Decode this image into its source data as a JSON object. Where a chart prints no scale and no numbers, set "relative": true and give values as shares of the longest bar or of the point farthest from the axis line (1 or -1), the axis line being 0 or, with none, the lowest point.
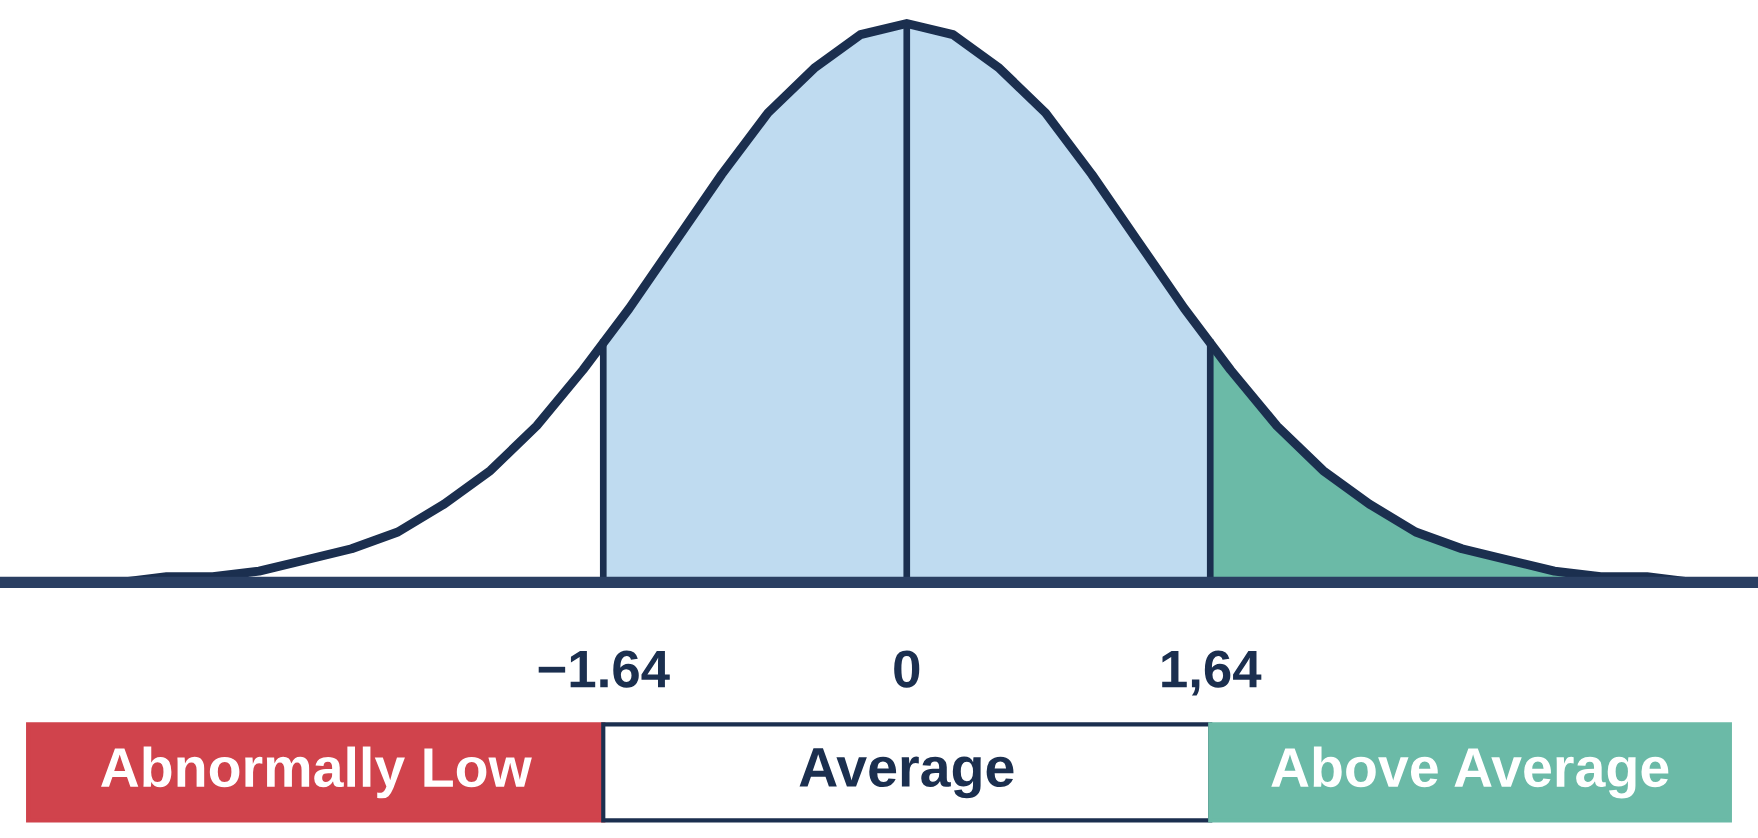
{
  "chart_data": {
    "type": "area",
    "relative": true,
    "xlim": [
      -4.9,
      4.6
    ],
    "xticks": [
      {
        "value": -1.64,
        "label": "−1.64"
      },
      {
        "value": 0,
        "label": "0"
      },
      {
        "value": 1.64,
        "label": "1,64"
      }
    ],
    "series": [
      {
        "color": "#bfdbf0",
        "x": [
          -1.64,
          -1.5,
          -1.25,
          -1.0,
          -0.75,
          -0.5,
          -0.25,
          0,
          0.25,
          0.5,
          0.75,
          1.0,
          1.25,
          1.5,
          1.64
        ],
        "values": [
          0.43,
          0.49,
          0.61,
          0.73,
          0.84,
          0.92,
          0.98,
          1,
          0.98,
          0.92,
          0.84,
          0.73,
          0.61,
          0.49,
          0.43
        ]
      },
      {
        "color": "#6bbaa7",
        "x": [
          1.64,
          1.75,
          2.0,
          2.25,
          2.5,
          2.75,
          3.0,
          3.25,
          3.5,
          3.75,
          4.0,
          4.25,
          4.6
        ],
        "values": [
          0.43,
          0.38,
          0.28,
          0.2,
          0.14,
          0.09,
          0.06,
          0.04,
          0.02,
          0.01,
          0.01,
          0,
          0
        ]
      },
      {
        "type": "line",
        "color": "#1b2f4f",
        "x": [
          -4.75,
          -4.5,
          -4.25,
          -4.0,
          -3.75,
          -3.5,
          -3.25,
          -3.0,
          -2.75,
          -2.5,
          -2.25,
          -2.0,
          -1.75,
          -1.5,
          -1.25,
          -1.0,
          -0.75,
          -0.5,
          -0.25,
          0,
          0.25,
          0.5,
          0.75,
          1.0,
          1.25,
          1.5,
          1.75,
          2.0,
          2.25,
          2.5,
          2.75,
          3.0,
          3.25,
          3.5,
          3.75,
          4.0,
          4.25,
          4.6
        ],
        "values": [
          0,
          0,
          0,
          0.01,
          0.01,
          0.02,
          0.04,
          0.06,
          0.09,
          0.14,
          0.2,
          0.28,
          0.38,
          0.49,
          0.61,
          0.73,
          0.84,
          0.92,
          0.98,
          1,
          0.98,
          0.92,
          0.84,
          0.73,
          0.61,
          0.49,
          0.38,
          0.28,
          0.2,
          0.14,
          0.09,
          0.06,
          0.04,
          0.02,
          0.01,
          0.01,
          0,
          0
        ]
      }
    ],
    "ref_lines": [
      {
        "axis": "x",
        "value": -1.64,
        "color": "#1b2f4f"
      },
      {
        "axis": "x",
        "value": 0,
        "color": "#1b2f4f"
      },
      {
        "axis": "x",
        "value": 1.64,
        "color": "#1b2f4f"
      }
    ],
    "annotations": [
      "Abnormally Low",
      "Average",
      "Above Average"
    ]
  }
}
